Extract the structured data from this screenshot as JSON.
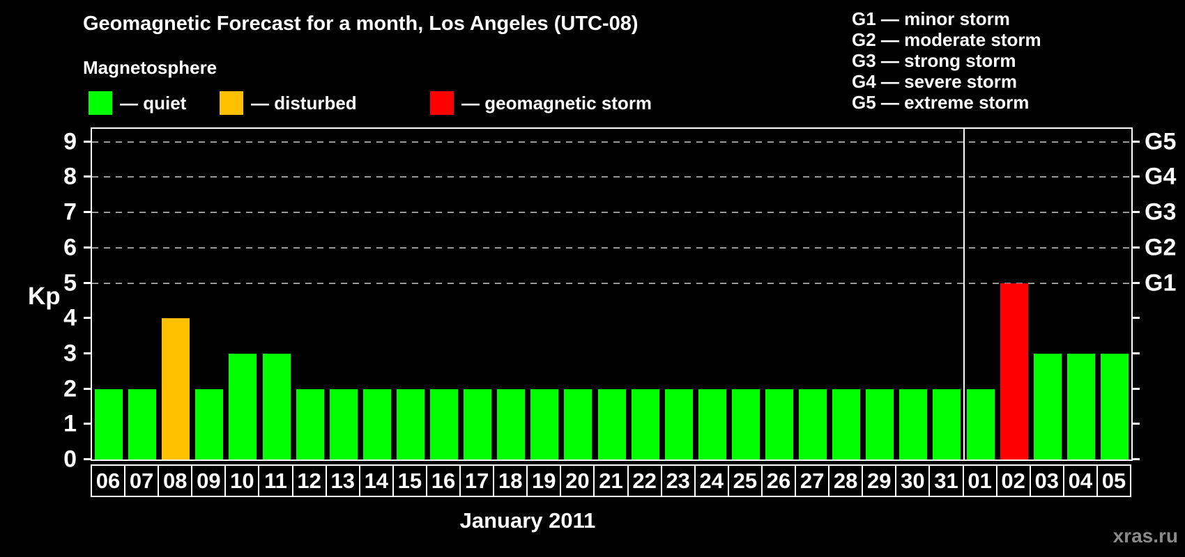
{
  "title": "Geomagnetic Forecast for a month, Los Angeles (UTC-08)",
  "subtitle": "Magnetosphere",
  "legend": {
    "items": [
      {
        "label": "— quiet",
        "color": "#00ff00",
        "status": "quiet"
      },
      {
        "label": "— disturbed",
        "color": "#ffc000",
        "status": "disturbed"
      },
      {
        "label": "— geomagnetic storm",
        "color": "#ff0000",
        "status": "storm"
      }
    ]
  },
  "g_legend": [
    "G1 — minor storm",
    "G2 — moderate storm",
    "G3 — strong storm",
    "G4 — severe storm",
    "G5 — extreme storm"
  ],
  "y_axis": {
    "label": "Kp",
    "ticks": [
      0,
      1,
      2,
      3,
      4,
      5,
      6,
      7,
      8,
      9
    ]
  },
  "right_axis": {
    "labels": [
      {
        "kp": 5,
        "label": "G1"
      },
      {
        "kp": 6,
        "label": "G2"
      },
      {
        "kp": 7,
        "label": "G3"
      },
      {
        "kp": 8,
        "label": "G4"
      },
      {
        "kp": 9,
        "label": "G5"
      }
    ]
  },
  "x_label": "January 2011",
  "watermark": "xras.ru",
  "chart_data": {
    "type": "bar",
    "categories": [
      "06",
      "07",
      "08",
      "09",
      "10",
      "11",
      "12",
      "13",
      "14",
      "15",
      "16",
      "17",
      "18",
      "19",
      "20",
      "21",
      "22",
      "23",
      "24",
      "25",
      "26",
      "27",
      "28",
      "29",
      "30",
      "31",
      "01",
      "02",
      "03",
      "04",
      "05"
    ],
    "values": [
      2,
      2,
      4,
      2,
      3,
      3,
      2,
      2,
      2,
      2,
      2,
      2,
      2,
      2,
      2,
      2,
      2,
      2,
      2,
      2,
      2,
      2,
      2,
      2,
      2,
      2,
      2,
      5,
      3,
      3,
      3
    ],
    "title": "Geomagnetic Forecast for a month, Los Angeles (UTC-08)",
    "xlabel": "January 2011",
    "ylabel": "Kp",
    "ylim": [
      0,
      9.4
    ],
    "gridlines_kp": [
      5,
      6,
      7,
      8,
      9
    ],
    "grid": "dashed horizontal at G-storm levels only",
    "legend_position": "top",
    "month_boundary_index": 26,
    "color_rule": {
      "disturbed_kp": 4,
      "storm_kp": 5
    },
    "bar_colors": {
      "quiet": "#00ff00",
      "disturbed": "#ffc000",
      "storm": "#ff0000"
    }
  }
}
